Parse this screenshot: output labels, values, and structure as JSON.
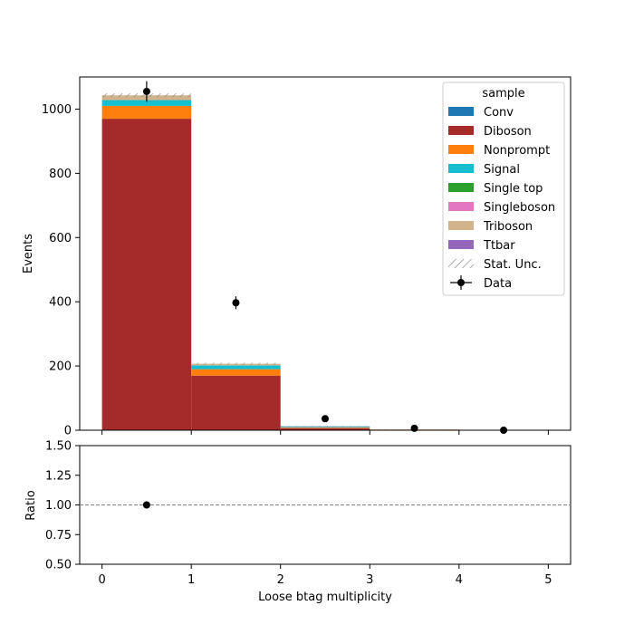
{
  "chart_data": {
    "type": "bar",
    "stacked": true,
    "xlabel": "Loose btag multiplicity",
    "ylabel": "Events",
    "xlim": [
      -0.25,
      5.25
    ],
    "ylim": [
      0,
      1100
    ],
    "xticks": [
      0,
      1,
      2,
      3,
      4,
      5
    ],
    "yticks": [
      0,
      200,
      400,
      600,
      800,
      1000
    ],
    "bin_edges": [
      0,
      1,
      2,
      3,
      4,
      5
    ],
    "legend": {
      "title": "sample",
      "placement": "top-right",
      "unc_label": "Stat. Unc.",
      "data_label": "Data"
    },
    "series": [
      {
        "name": "Diboson",
        "color": "#a52a2a",
        "values": [
          970,
          170,
          6,
          1.5,
          0
        ]
      },
      {
        "name": "Nonprompt",
        "color": "#ff7f0e",
        "values": [
          40,
          20,
          2,
          0.5,
          0
        ]
      },
      {
        "name": "Signal",
        "color": "#17becf",
        "values": [
          18,
          12,
          2,
          0,
          0
        ]
      },
      {
        "name": "Triboson",
        "color": "#d2b48c",
        "values": [
          15,
          5,
          1,
          0,
          0
        ]
      },
      {
        "name": "Conv",
        "color": "#1f77b4",
        "values": [
          0,
          0,
          1,
          0,
          0
        ]
      },
      {
        "name": "Single top",
        "color": "#2ca02c",
        "values": [
          0,
          0,
          0,
          0,
          0
        ]
      },
      {
        "name": "Singleboson",
        "color": "#e377c2",
        "values": [
          0,
          0,
          0,
          0,
          0
        ]
      },
      {
        "name": "Ttbar",
        "color": "#9467bd",
        "values": [
          0,
          0,
          0,
          0,
          0
        ]
      }
    ],
    "legend_order": [
      "Conv",
      "Diboson",
      "Nonprompt",
      "Signal",
      "Single top",
      "Singleboson",
      "Triboson",
      "Ttbar"
    ],
    "stat_unc": [
      6,
      3,
      1,
      0.5,
      0
    ],
    "data": {
      "x": [
        0.5,
        1.5,
        2.5,
        3.5,
        4.5
      ],
      "y": [
        1055,
        397,
        36,
        6,
        0
      ],
      "yerr": [
        32,
        20,
        6,
        2.4,
        0
      ]
    },
    "ratio": {
      "ylabel": "Ratio",
      "ylim": [
        0.5,
        1.5
      ],
      "yticks": [
        "0.50",
        "0.75",
        "1.00",
        "1.25",
        "1.50"
      ],
      "reference_line": 1.0,
      "points": [
        {
          "x": 0.5,
          "y": 1.0
        }
      ]
    }
  }
}
